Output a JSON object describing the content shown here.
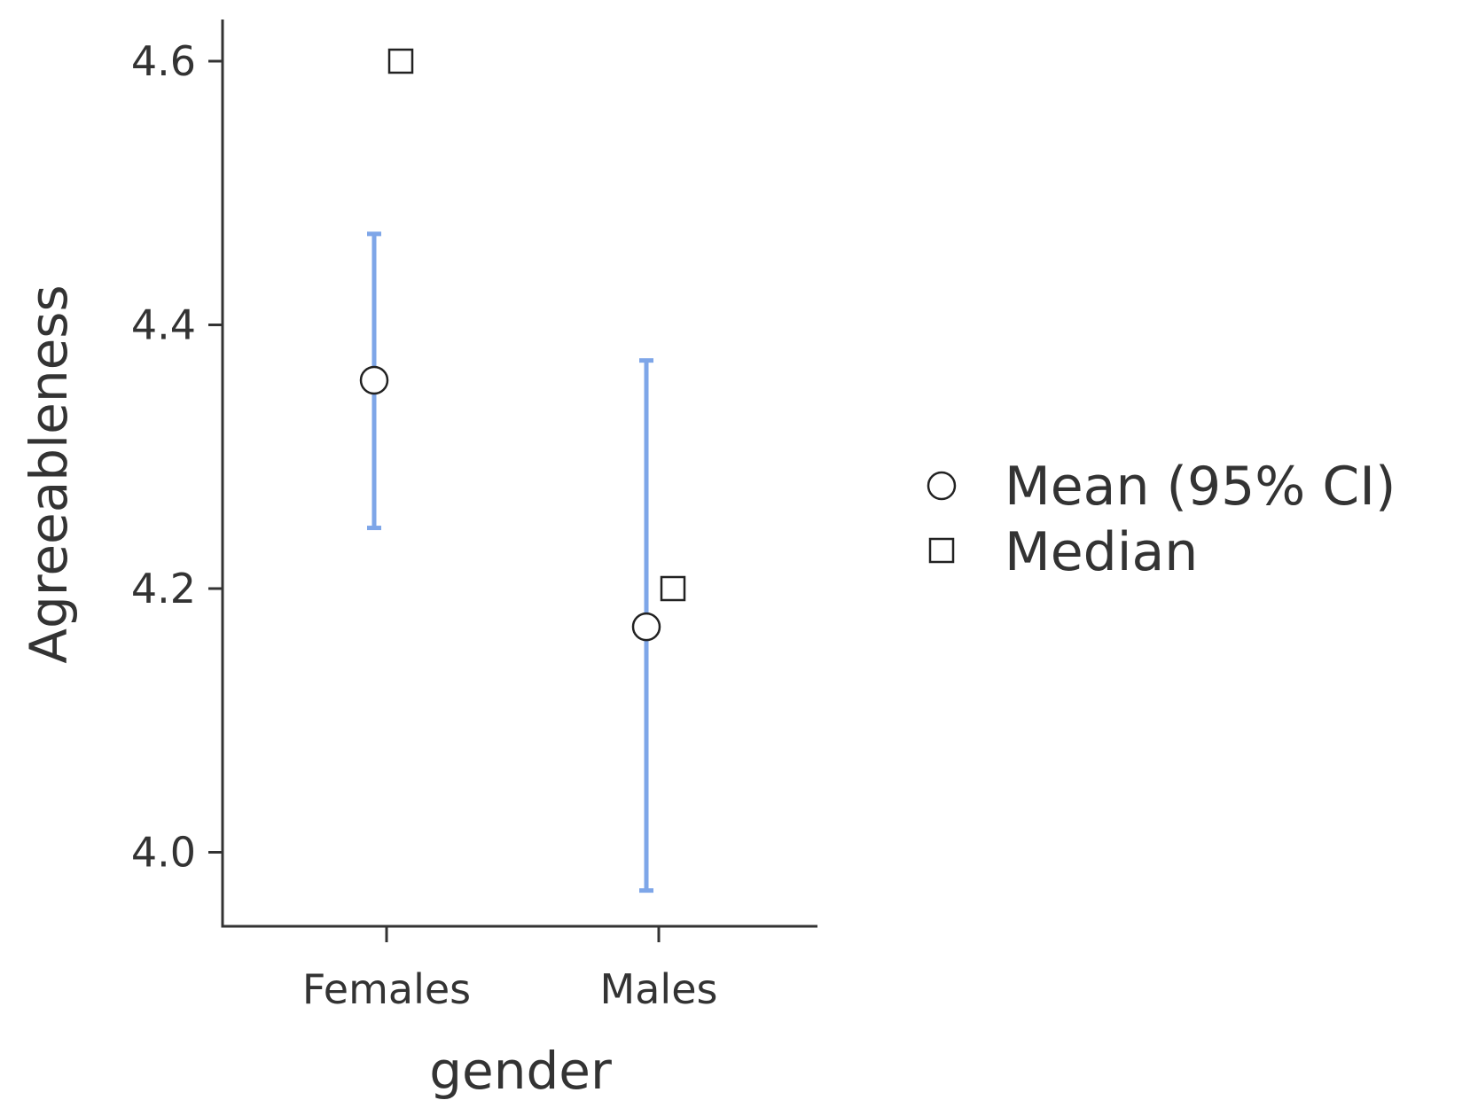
{
  "chart_data": {
    "type": "scatter",
    "xlabel": "gender",
    "ylabel": "Agreeableness",
    "categories": [
      "Females",
      "Males"
    ],
    "ylim": [
      3.94,
      4.63
    ],
    "yticks": [
      4.0,
      4.2,
      4.4,
      4.6
    ],
    "ytick_labels": [
      "4.0",
      "4.2",
      "4.4",
      "4.6"
    ],
    "series": [
      {
        "name": "Mean (95% CI)",
        "marker": "circle",
        "values": [
          4.358,
          4.171
        ],
        "ci_lower": [
          4.246,
          3.971
        ],
        "ci_upper": [
          4.469,
          4.373
        ]
      },
      {
        "name": "Median",
        "marker": "square",
        "values": [
          4.6,
          4.2
        ]
      }
    ],
    "legend": "right",
    "grid": false,
    "colors": {
      "errorbar": "#7EA6E8",
      "marker_fill": "#ffffff",
      "marker_stroke": "#222222",
      "text": "#333333",
      "axis": "#333333"
    }
  }
}
